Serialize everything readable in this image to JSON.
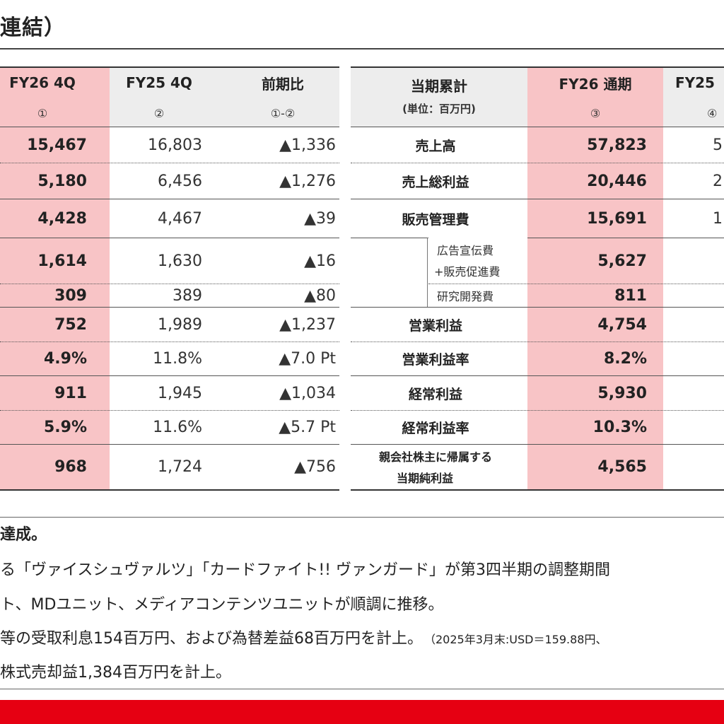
{
  "title": "連結）",
  "left_table": {
    "headers": [
      {
        "label": "FY26 4Q",
        "sub": "①"
      },
      {
        "label": "FY25 4Q",
        "sub": "②"
      },
      {
        "label": "前期比",
        "sub": "①-②"
      }
    ],
    "rows": [
      {
        "cur": "15,467",
        "prev": "16,803",
        "diff": "▲1,336"
      },
      {
        "cur": "5,180",
        "prev": "6,456",
        "diff": "▲1,276"
      },
      {
        "cur": "4,428",
        "prev": "4,467",
        "diff": "▲39"
      },
      {
        "cur": "1,614",
        "prev": "1,630",
        "diff": "▲16"
      },
      {
        "cur": "309",
        "prev": "389",
        "diff": "▲80"
      },
      {
        "cur": "752",
        "prev": "1,989",
        "diff": "▲1,237"
      },
      {
        "cur": "4.9%",
        "prev": "11.8%",
        "diff": "▲7.0 Pt"
      },
      {
        "cur": "911",
        "prev": "1,945",
        "diff": "▲1,034"
      },
      {
        "cur": "5.9%",
        "prev": "11.6%",
        "diff": "▲5.7 Pt"
      },
      {
        "cur": "968",
        "prev": "1,724",
        "diff": "▲756"
      }
    ]
  },
  "right_table": {
    "label_header": "当期累計",
    "label_unit": "(単位：百万円)",
    "headers": [
      {
        "label": "FY26 通期",
        "sub": "③"
      },
      {
        "label": "FY25",
        "sub": "④"
      }
    ],
    "rows": [
      {
        "label": "売上高",
        "cur": "57,823",
        "prev": "5"
      },
      {
        "label": "売上総利益",
        "cur": "20,446",
        "prev": "2"
      },
      {
        "label": "販売管理費",
        "cur": "15,691",
        "prev": "1"
      },
      {
        "label_line1": "広告宣伝費",
        "label_line2": "+販売促進費",
        "cur": "5,627",
        "prev": ""
      },
      {
        "label": "研究開発費",
        "cur": "811",
        "prev": ""
      },
      {
        "label": "営業利益",
        "cur": "4,754",
        "prev": ""
      },
      {
        "label": "営業利益率",
        "cur": "8.2%",
        "prev": ""
      },
      {
        "label": "経常利益",
        "cur": "5,930",
        "prev": ""
      },
      {
        "label": "経常利益率",
        "cur": "10.3%",
        "prev": ""
      },
      {
        "label_line1": "親会社株主に帰属する",
        "label_line2": "当期純利益",
        "cur": "4,565",
        "prev": ""
      }
    ]
  },
  "notes": [
    {
      "text": "達成。"
    },
    {
      "text": "る「ヴァイスシュヴァルツ」「カードファイト!! ヴァンガード」が第3四半期の調整期間"
    },
    {
      "text": "ト、MDユニット、メディアコンテンツユニットが順調に推移。"
    },
    {
      "text": "等の受取利息154百万円、および為替差益68百万円を計上。",
      "small": "（2025年3月末:USD＝159.88円、"
    },
    {
      "text": "株式売却益1,384百万円を計上。"
    }
  ],
  "colors": {
    "highlight": "#f8c4c6",
    "header_gray": "#ededed",
    "brand_red": "#e60012"
  }
}
